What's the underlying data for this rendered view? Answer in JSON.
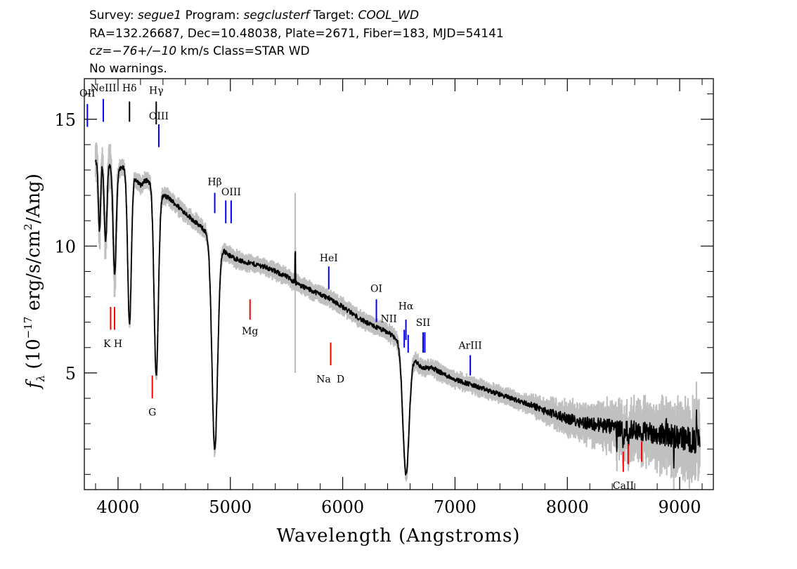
{
  "header": {
    "line1": {
      "survey_label": "Survey:",
      "survey": "segue1",
      "program_label": "Program:",
      "program": "segclusterf",
      "target_label": "Target:",
      "target": "COOL_WD"
    },
    "line2": "RA=132.26687, Dec=10.48038, Plate=2671, Fiber=183, MJD=54141",
    "line3": {
      "cz": "cz=−76+/−10",
      "units": "km/s",
      "class": "Class=STAR WD"
    },
    "line4": "No warnings."
  },
  "chart_data": {
    "type": "line",
    "xlabel": "Wavelength (Angstroms)",
    "ylabel": {
      "f": "f",
      "sub": "λ",
      "pre": "(10",
      "exp": "−17",
      "mid": "erg/s/cm",
      "exp2": "2",
      "post": "/Ang)"
    },
    "xlim": [
      3700,
      9300
    ],
    "ylim": [
      0.4,
      16.6
    ],
    "x_ticks": [
      4000,
      5000,
      6000,
      7000,
      8000,
      9000
    ],
    "y_ticks": [
      5,
      10,
      15
    ],
    "grid": false,
    "series": [
      {
        "role": "flux",
        "color": "#000000",
        "continuum": [
          [
            3800,
            13.3
          ],
          [
            3850,
            13.4
          ],
          [
            3900,
            13.3
          ],
          [
            3950,
            13.2
          ],
          [
            4000,
            13.0
          ],
          [
            4050,
            13.1
          ],
          [
            4100,
            12.9
          ],
          [
            4150,
            12.7
          ],
          [
            4200,
            12.4
          ],
          [
            4250,
            12.6
          ],
          [
            4300,
            12.5
          ],
          [
            4350,
            12.2
          ],
          [
            4400,
            12.0
          ],
          [
            4450,
            11.9
          ],
          [
            4500,
            11.7
          ],
          [
            4600,
            11.3
          ],
          [
            4700,
            10.9
          ],
          [
            4800,
            10.5
          ],
          [
            4900,
            10.0
          ],
          [
            5000,
            9.6
          ],
          [
            5100,
            9.4
          ],
          [
            5200,
            9.3
          ],
          [
            5300,
            9.2
          ],
          [
            5400,
            9.0
          ],
          [
            5500,
            8.8
          ],
          [
            5600,
            8.5
          ],
          [
            5700,
            8.3
          ],
          [
            5800,
            8.1
          ],
          [
            5900,
            7.9
          ],
          [
            6000,
            7.6
          ],
          [
            6100,
            7.3
          ],
          [
            6200,
            7.0
          ],
          [
            6300,
            6.8
          ],
          [
            6400,
            6.6
          ],
          [
            6500,
            6.3
          ],
          [
            6600,
            5.8
          ],
          [
            6700,
            5.2
          ],
          [
            6800,
            5.2
          ],
          [
            6900,
            4.95
          ],
          [
            7000,
            4.75
          ],
          [
            7100,
            4.6
          ],
          [
            7200,
            4.45
          ],
          [
            7300,
            4.3
          ],
          [
            7400,
            4.15
          ],
          [
            7500,
            4.0
          ],
          [
            7600,
            3.85
          ],
          [
            7700,
            3.7
          ],
          [
            7800,
            3.5
          ],
          [
            7900,
            3.35
          ],
          [
            8000,
            3.2
          ],
          [
            8100,
            3.1
          ],
          [
            8200,
            3.0
          ],
          [
            8300,
            2.95
          ],
          [
            8400,
            2.85
          ],
          [
            8500,
            2.8
          ],
          [
            8600,
            2.75
          ],
          [
            8700,
            2.7
          ],
          [
            8800,
            2.6
          ],
          [
            8900,
            2.55
          ],
          [
            9000,
            2.45
          ],
          [
            9100,
            2.35
          ],
          [
            9180,
            2.3
          ]
        ],
        "absorption_lines": [
          [
            3835,
            2.8,
            10
          ],
          [
            3889,
            3.2,
            12
          ],
          [
            3970,
            4.2,
            14
          ],
          [
            4102,
            6.0,
            16
          ],
          [
            4340,
            7.4,
            19
          ],
          [
            4861,
            8.2,
            25
          ],
          [
            6563,
            5.0,
            28
          ],
          [
            8498,
            0.6,
            5
          ],
          [
            8542,
            0.5,
            5
          ],
          [
            8662,
            0.5,
            5
          ]
        ],
        "spikes": [
          [
            5577,
            1.2
          ],
          [
            8440,
            -0.6
          ],
          [
            8880,
            0.8
          ],
          [
            8950,
            -0.8
          ],
          [
            9150,
            0.7
          ]
        ]
      },
      {
        "role": "error",
        "color": "#c0c0c0"
      }
    ],
    "emission_lines": [
      {
        "label": "OII",
        "x": 3727,
        "color": "#0000ff",
        "label_y": 15.9,
        "y1": 15.6,
        "y2": 14.7
      },
      {
        "label": "NeIII",
        "x": 3869,
        "color": "#0000ff",
        "label_y": 16.1,
        "y1": 15.8,
        "y2": 14.9
      },
      {
        "label": "Hδ",
        "x": 4102,
        "color": "#000000",
        "label_y": 16.1,
        "y1": 15.7,
        "y2": 14.9
      },
      {
        "label": "Hγ",
        "x": 4340,
        "color": "#000000",
        "label_y": 16.0,
        "y1": 15.7,
        "y2": 14.8
      },
      {
        "label": "OIII",
        "x": 4363,
        "color": "#0000ff",
        "label_y": 15.0,
        "y1": 14.8,
        "y2": 13.9
      },
      {
        "label": "Hβ",
        "x": 4861,
        "color": "#0000ff",
        "label_y": 12.4,
        "y1": 12.1,
        "y2": 11.3
      },
      {
        "label": "OIII",
        "x": 4959,
        "color": "#0000ff",
        "label_y": 12.0,
        "y1": 11.8,
        "y2": 10.9,
        "no_label": true
      },
      {
        "label": "OIII",
        "x": 5007,
        "color": "#0000ff",
        "label_y": 12.0,
        "y1": 11.8,
        "y2": 10.9
      },
      {
        "label": "HeI",
        "x": 5876,
        "color": "#0000ff",
        "label_y": 9.4,
        "y1": 9.2,
        "y2": 8.3
      },
      {
        "label": "OI",
        "x": 6300,
        "color": "#0000ff",
        "label_y": 8.2,
        "y1": 7.9,
        "y2": 7.0
      },
      {
        "label": "Hα",
        "x": 6563,
        "color": "#0000ff",
        "label_y": 7.5,
        "y1": 7.1,
        "y2": 6.3
      },
      {
        "label": "NII",
        "x": 6548,
        "color": "#0000ff",
        "label_y": 7.0,
        "y1": 6.7,
        "y2": 6.0,
        "label_dx": -22
      },
      {
        "label": "NII",
        "x": 6583,
        "color": "#0000ff",
        "label_y": 6.7,
        "y1": 6.5,
        "y2": 5.8,
        "no_label": true
      },
      {
        "label": "SII",
        "x": 6716,
        "color": "#0000ff",
        "label_y": 6.85,
        "y1": 6.6,
        "y2": 5.8
      },
      {
        "label": "NII",
        "x": 6731,
        "color": "#0000ff",
        "label_y": 6.6,
        "y1": 6.6,
        "y2": 5.8,
        "no_label": true
      },
      {
        "label": "ArIII",
        "x": 7136,
        "color": "#0000ff",
        "label_y": 5.95,
        "y1": 5.7,
        "y2": 4.9
      }
    ],
    "absorption_markers": [
      {
        "label": "K",
        "x": 3934,
        "color": "#ff0000",
        "y1": 7.6,
        "y2": 6.7,
        "label_y": 6.3,
        "label_dx": -5
      },
      {
        "label": "H",
        "x": 3969,
        "color": "#ff0000",
        "y1": 7.6,
        "y2": 6.7,
        "label_y": 6.3,
        "label_dx": 5
      },
      {
        "label": "G",
        "x": 4305,
        "color": "#ff0000",
        "y1": 4.9,
        "y2": 4.0,
        "label_y": 3.6
      },
      {
        "label": "Mg",
        "x": 5175,
        "color": "#ff0000",
        "y1": 7.9,
        "y2": 7.1,
        "label_y": 6.8
      },
      {
        "label": "Na",
        "x": 5893,
        "color": "#ff0000",
        "y1": 6.2,
        "y2": 5.3,
        "label_y": 4.9,
        "label_dx": -10
      },
      {
        "label": "D",
        "x": 5893,
        "color": "#ff0000",
        "y1": 6.2,
        "y2": 5.3,
        "label_y": 4.9,
        "label_dx": 14,
        "no_line": true
      },
      {
        "label": "CaII",
        "x": 8498,
        "color": "#ff0000",
        "y1": 1.9,
        "y2": 1.1,
        "label_y": 0.7
      },
      {
        "label": "CaII",
        "x": 8542,
        "color": "#ff0000",
        "y1": 2.2,
        "y2": 1.4,
        "no_label": true
      },
      {
        "label": "CaII",
        "x": 8662,
        "color": "#ff0000",
        "y1": 2.3,
        "y2": 1.5,
        "no_label": true
      }
    ]
  }
}
